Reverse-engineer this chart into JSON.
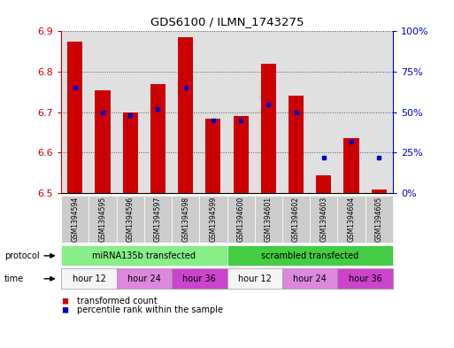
{
  "title": "GDS6100 / ILMN_1743275",
  "samples": [
    "GSM1394594",
    "GSM1394595",
    "GSM1394596",
    "GSM1394597",
    "GSM1394598",
    "GSM1394599",
    "GSM1394600",
    "GSM1394601",
    "GSM1394602",
    "GSM1394603",
    "GSM1394604",
    "GSM1394605"
  ],
  "red_values": [
    6.875,
    6.755,
    6.7,
    6.77,
    6.885,
    6.685,
    6.69,
    6.82,
    6.74,
    6.545,
    6.635,
    6.51
  ],
  "blue_percentiles": [
    65,
    50,
    48,
    52,
    65,
    45,
    45,
    55,
    50,
    22,
    32,
    22
  ],
  "y_min": 6.5,
  "y_max": 6.9,
  "y_ticks": [
    6.5,
    6.6,
    6.7,
    6.8,
    6.9
  ],
  "right_y_ticks": [
    0,
    25,
    50,
    75,
    100
  ],
  "right_y_labels": [
    "0%",
    "25%",
    "50%",
    "75%",
    "100%"
  ],
  "bar_color": "#cc0000",
  "dot_color": "#0000cc",
  "bar_bottom": 6.5,
  "protocol_groups": [
    {
      "label": "miRNA135b transfected",
      "start": 0,
      "end": 6,
      "color": "#88ee88"
    },
    {
      "label": "scrambled transfected",
      "start": 6,
      "end": 12,
      "color": "#44cc44"
    }
  ],
  "time_groups": [
    {
      "label": "hour 12",
      "start": 0,
      "end": 2,
      "color": "#f5f5f5"
    },
    {
      "label": "hour 24",
      "start": 2,
      "end": 4,
      "color": "#dd88dd"
    },
    {
      "label": "hour 36",
      "start": 4,
      "end": 6,
      "color": "#cc44cc"
    },
    {
      "label": "hour 12",
      "start": 6,
      "end": 8,
      "color": "#f5f5f5"
    },
    {
      "label": "hour 24",
      "start": 8,
      "end": 10,
      "color": "#dd88dd"
    },
    {
      "label": "hour 36",
      "start": 10,
      "end": 12,
      "color": "#cc44cc"
    }
  ],
  "bar_width": 0.55,
  "plot_bg_color": "#e0e0e0",
  "sample_box_color": "#cccccc",
  "left_tick_color": "#cc0000",
  "right_tick_color": "#0000cc",
  "grid_linestyle": ":",
  "grid_color": "#555555"
}
